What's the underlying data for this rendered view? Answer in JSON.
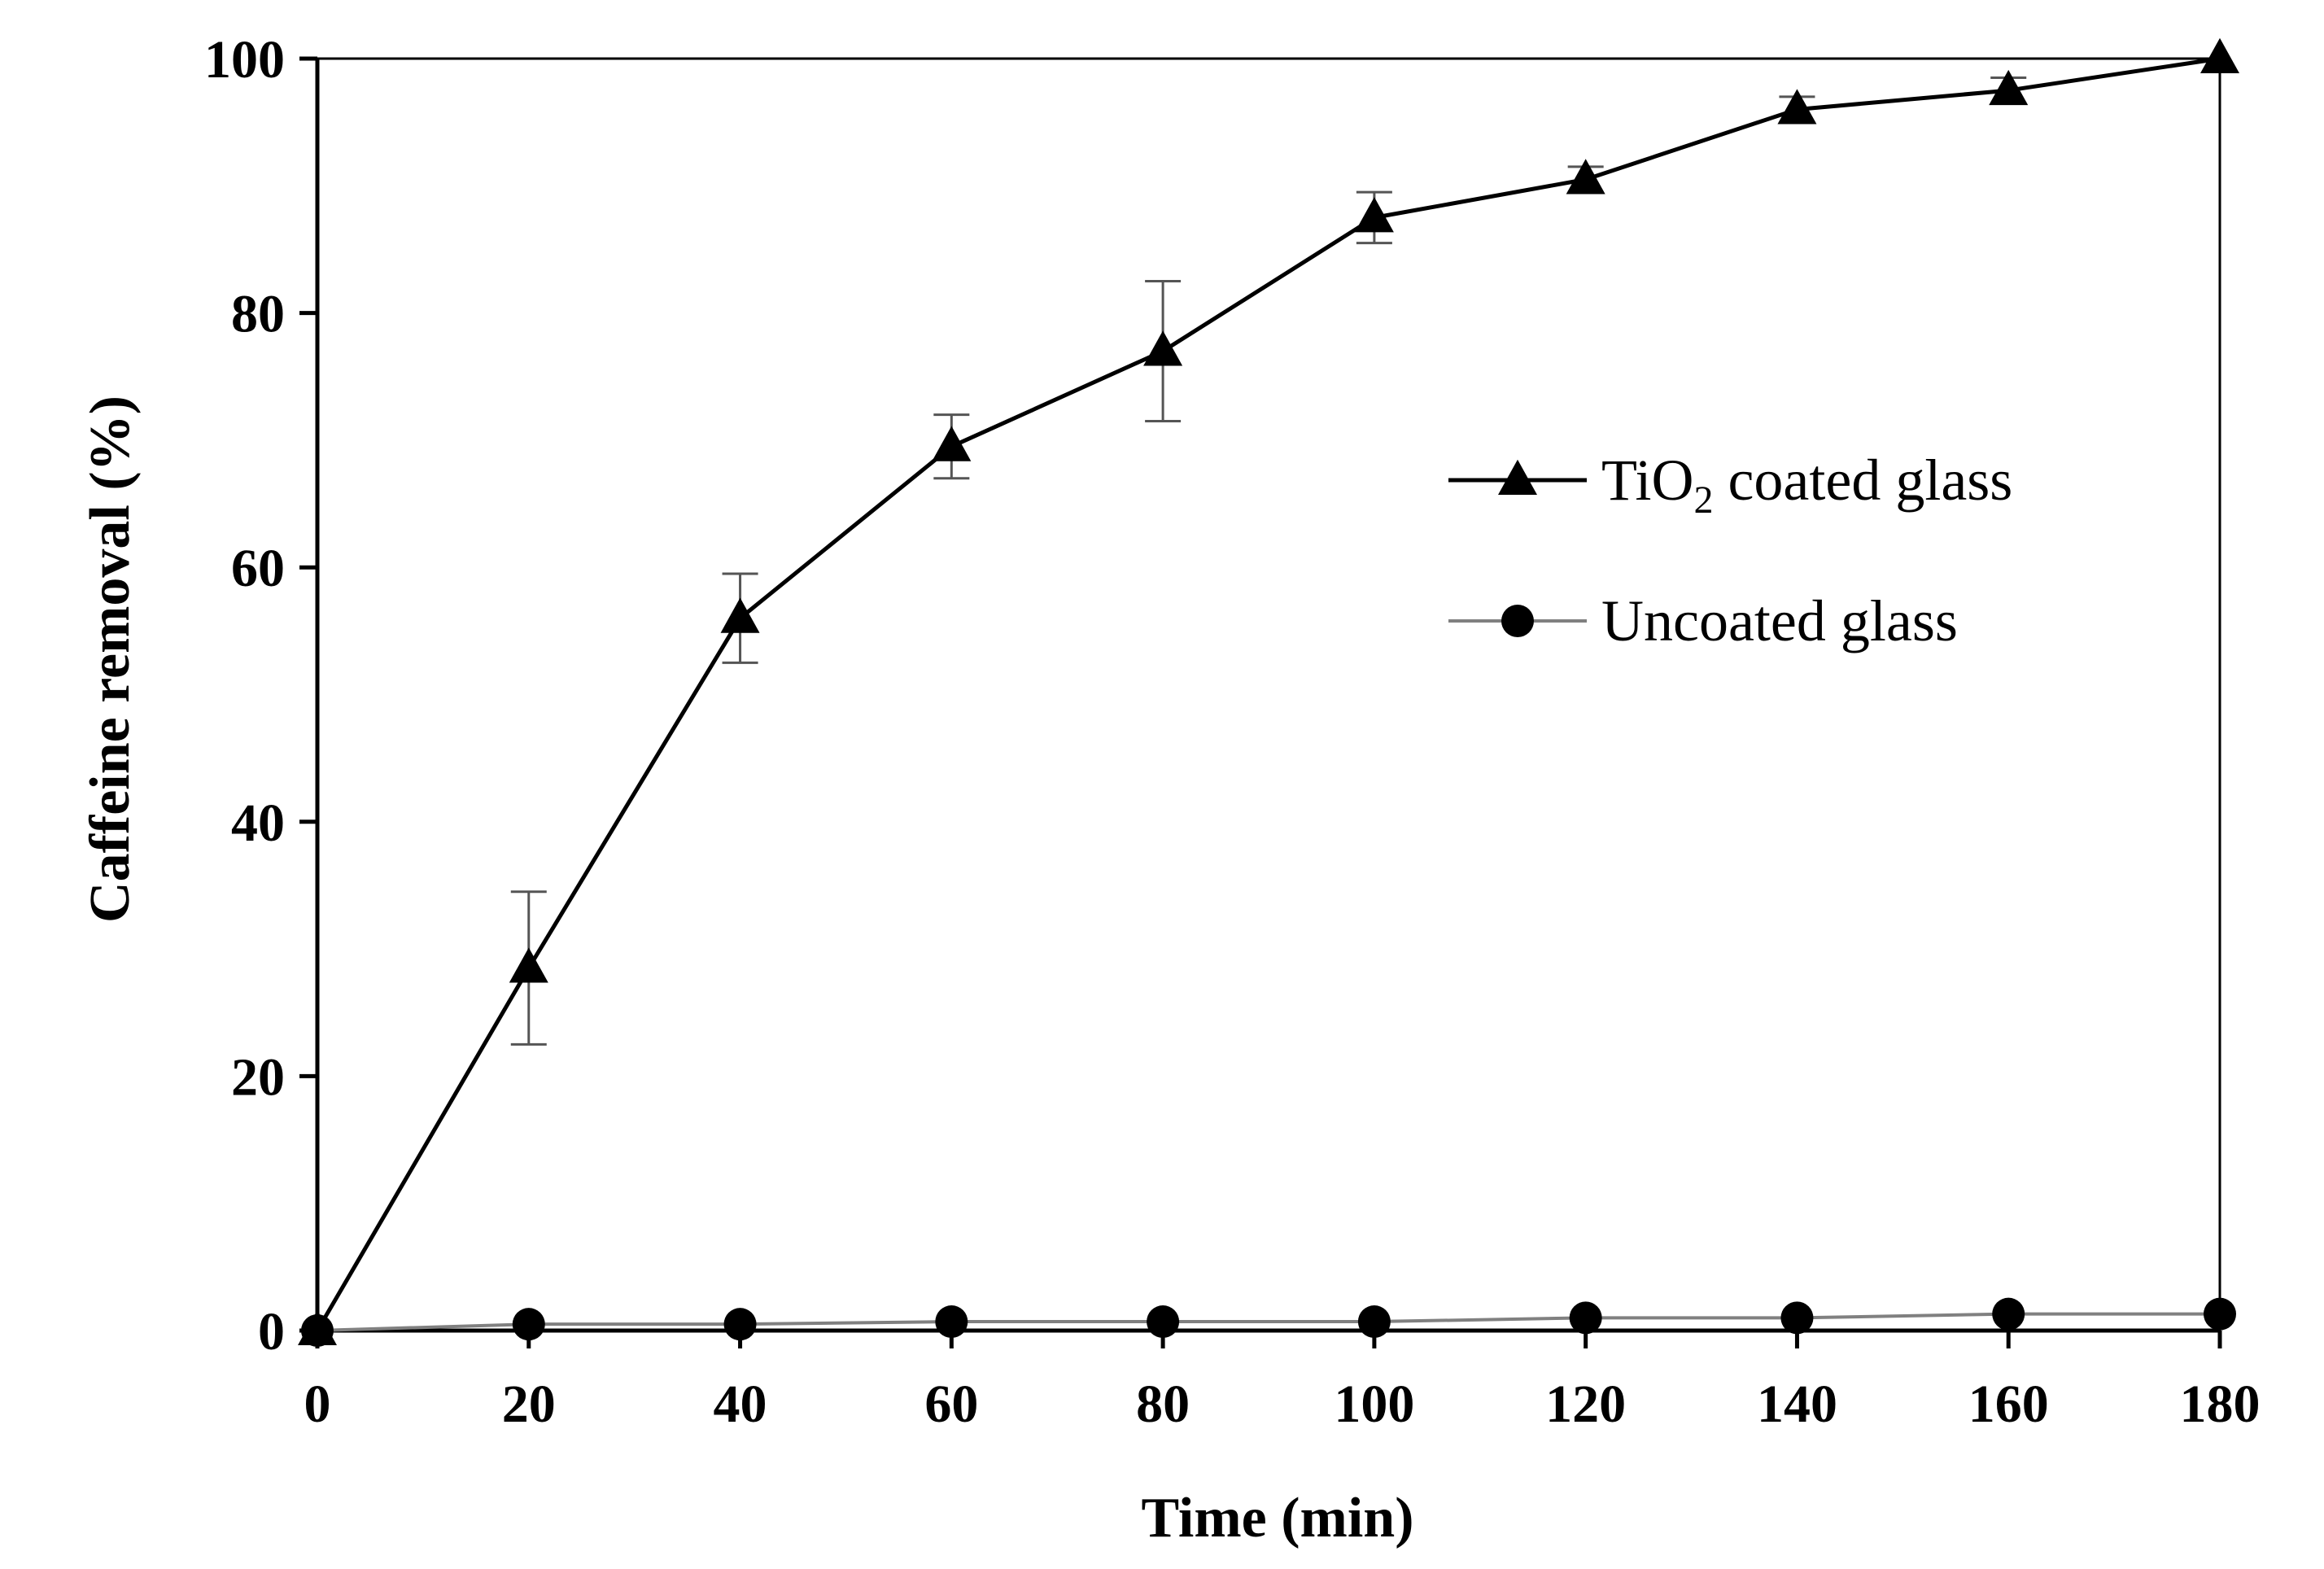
{
  "chart_data": {
    "type": "line",
    "title": "",
    "xlabel": "Time (min)",
    "ylabel": "Caffeine removal (%)",
    "xlim": [
      0,
      180
    ],
    "ylim": [
      0,
      100
    ],
    "xticks": [
      0,
      20,
      40,
      60,
      80,
      100,
      120,
      140,
      160,
      180
    ],
    "yticks": [
      0,
      20,
      40,
      60,
      80,
      100
    ],
    "legend_position": "center-right",
    "series": [
      {
        "name": "TiO2 coated glass",
        "legend_base": "TiO",
        "legend_sub": "2",
        "legend_rest": " coated glass",
        "marker": "triangle",
        "color": "#000000",
        "x": [
          0,
          20,
          40,
          60,
          80,
          100,
          120,
          140,
          160,
          180
        ],
        "y": [
          0,
          28.5,
          56,
          69.5,
          77,
          87.5,
          90.5,
          96,
          97.5,
          100
        ],
        "err": [
          0,
          6,
          3.5,
          2.5,
          5.5,
          2,
          1,
          1,
          1,
          0
        ]
      },
      {
        "name": "Uncoated glass",
        "marker": "circle",
        "color": "#808080",
        "x": [
          0,
          20,
          40,
          60,
          80,
          100,
          120,
          140,
          160,
          180
        ],
        "y": [
          0,
          0.5,
          0.5,
          0.7,
          0.7,
          0.7,
          1,
          1,
          1.3,
          1.3
        ],
        "err": [
          0,
          0,
          0,
          0,
          0,
          0,
          0,
          0,
          0,
          0
        ]
      }
    ]
  }
}
